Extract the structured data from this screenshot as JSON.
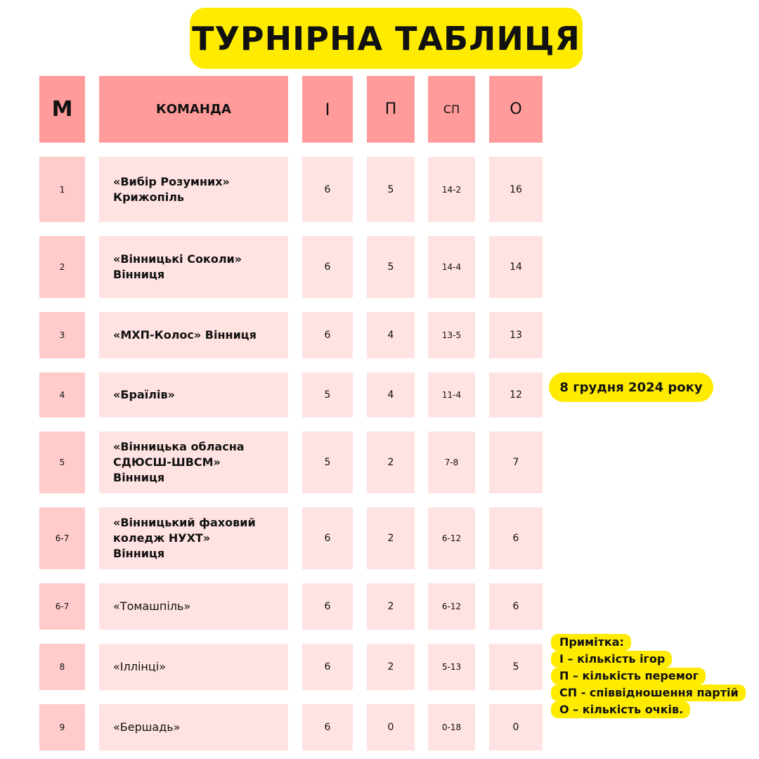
{
  "title": "ТУРНІРНА ТАБЛИЦЯ",
  "headers": {
    "m": "М",
    "team": "КОМАНДА",
    "i": "І",
    "p": "П",
    "sp": "СП",
    "o": "О"
  },
  "rows": [
    {
      "m": "1",
      "team": "«Вибір Розумних» Крижопіль",
      "i": "6",
      "p": "5",
      "sp": "14-2",
      "o": "16"
    },
    {
      "m": "2",
      "team": "«Вінницькі Соколи» Вінниця",
      "i": "6",
      "p": "5",
      "sp": "14-4",
      "o": "14"
    },
    {
      "m": "3",
      "team": "«МХП-Колос» Вінниця",
      "i": "6",
      "p": "4",
      "sp": "13-5",
      "o": "13"
    },
    {
      "m": "4",
      "team": "«Браїлів»",
      "i": "5",
      "p": "4",
      "sp": "11-4",
      "o": "12"
    },
    {
      "m": "5",
      "team": "«Вінницька обласна СДЮСШ-ШВСМ» Вінниця",
      "i": "5",
      "p": "2",
      "sp": "7-8",
      "o": "7"
    },
    {
      "m": "6-7",
      "team": "«Вінницький фаховий коледж НУХТ» Вінниця",
      "i": "6",
      "p": "2",
      "sp": "6-12",
      "o": "6"
    },
    {
      "m": "6-7",
      "team": "«Томашпіль»",
      "i": "6",
      "p": "2",
      "sp": "6-12",
      "o": "6"
    },
    {
      "m": "8",
      "team": "«Іллінці»",
      "i": "6",
      "p": "2",
      "sp": "5-13",
      "o": "5"
    },
    {
      "m": "9",
      "team": "«Бершадь»",
      "i": "6",
      "p": "0",
      "sp": "0-18",
      "o": "0"
    }
  ],
  "date": "8 грудня 2024 року",
  "note": [
    "Примітка:",
    "І – кількість ігор",
    "П – кількість перемог",
    "СП - співвідношення партій",
    "О – кількість очків."
  ],
  "colors": {
    "yellow": "#FFEB00",
    "header": "#FF9B9B",
    "m_column": "#FFCBCB",
    "cell": "#FFE2E2"
  }
}
